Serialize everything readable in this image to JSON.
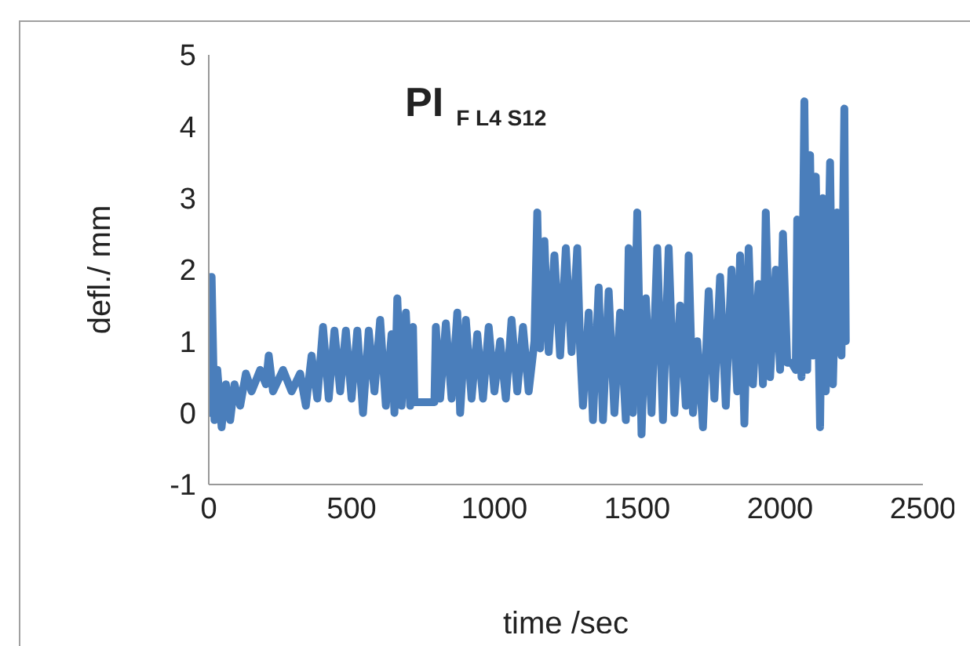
{
  "chart_data": {
    "type": "line",
    "title": "PI$_{F L4 S12}$",
    "xlabel": "time /sec",
    "ylabel": "defl./ mm",
    "xlim": [
      0,
      2500
    ],
    "xticks": [
      0,
      500,
      1000,
      1500,
      2000,
      2500
    ],
    "ylim": [
      -1,
      5
    ],
    "yticks": [
      -1,
      0,
      1,
      2,
      3,
      4,
      5
    ],
    "grid": false,
    "legend": false,
    "marker": "none",
    "line_style": "solid",
    "series": [
      {
        "color": "#4a7ebb",
        "x": [
          0,
          5,
          10,
          20,
          30,
          45,
          60,
          75,
          90,
          110,
          130,
          150,
          180,
          200,
          210,
          225,
          260,
          290,
          320,
          340,
          360,
          380,
          400,
          420,
          440,
          460,
          480,
          500,
          520,
          540,
          560,
          580,
          600,
          620,
          640,
          650,
          660,
          675,
          690,
          705,
          715,
          720,
          790,
          795,
          810,
          830,
          850,
          870,
          880,
          900,
          920,
          940,
          960,
          980,
          1000,
          1020,
          1040,
          1060,
          1080,
          1100,
          1120,
          1140,
          1150,
          1160,
          1175,
          1190,
          1210,
          1230,
          1250,
          1270,
          1290,
          1300,
          1310,
          1330,
          1345,
          1365,
          1380,
          1400,
          1420,
          1440,
          1460,
          1470,
          1485,
          1500,
          1515,
          1530,
          1550,
          1570,
          1590,
          1610,
          1630,
          1650,
          1670,
          1680,
          1695,
          1710,
          1730,
          1750,
          1770,
          1790,
          1810,
          1830,
          1850,
          1860,
          1875,
          1890,
          1905,
          1925,
          1940,
          1950,
          1965,
          1985,
          2000,
          2010,
          2025,
          2040,
          2055,
          2060,
          2075,
          2085,
          2095,
          2105,
          2115,
          2125,
          2140,
          2150,
          2160,
          2175,
          2185,
          2200,
          2215,
          2225,
          2230
        ],
        "values": [
          1.9,
          0,
          1.9,
          -0.1,
          0.6,
          -0.2,
          0.4,
          -0.1,
          0.4,
          0.1,
          0.55,
          0.3,
          0.6,
          0.4,
          0.8,
          0.3,
          0.6,
          0.3,
          0.55,
          0.1,
          0.8,
          0.2,
          1.2,
          0.2,
          1.15,
          0.3,
          1.15,
          0.2,
          1.15,
          0,
          1.15,
          0.3,
          1.3,
          0.1,
          1.1,
          0,
          1.6,
          0.1,
          1.4,
          0.1,
          1.2,
          0.15,
          0.15,
          1.2,
          0.2,
          1.25,
          0.2,
          1.4,
          0,
          1.3,
          0.2,
          1.1,
          0.2,
          1.2,
          0.3,
          1,
          0.2,
          1.3,
          0.3,
          1.2,
          0.3,
          1,
          2.8,
          0.9,
          2.4,
          0.85,
          2.2,
          0.8,
          2.3,
          0.85,
          2.3,
          0.9,
          0.1,
          1.4,
          -0.1,
          1.75,
          -0.1,
          1.7,
          0,
          1.4,
          -0.1,
          2.3,
          0,
          2.8,
          -0.3,
          1.6,
          0,
          2.3,
          -0.1,
          2.3,
          0,
          1.5,
          0.1,
          2.2,
          0,
          1,
          -0.2,
          1.7,
          0.2,
          1.9,
          0.1,
          2,
          0.3,
          2.2,
          -0.15,
          2.3,
          0.4,
          1.8,
          0.4,
          2.8,
          0.5,
          2,
          0.6,
          2.5,
          0.7,
          0.7,
          0.6,
          2.7,
          0.5,
          4.35,
          0.6,
          3.6,
          0.8,
          3.3,
          -0.2,
          3,
          0.3,
          3.5,
          0.4,
          2.8,
          0.8,
          4.25,
          1
        ]
      }
    ]
  }
}
